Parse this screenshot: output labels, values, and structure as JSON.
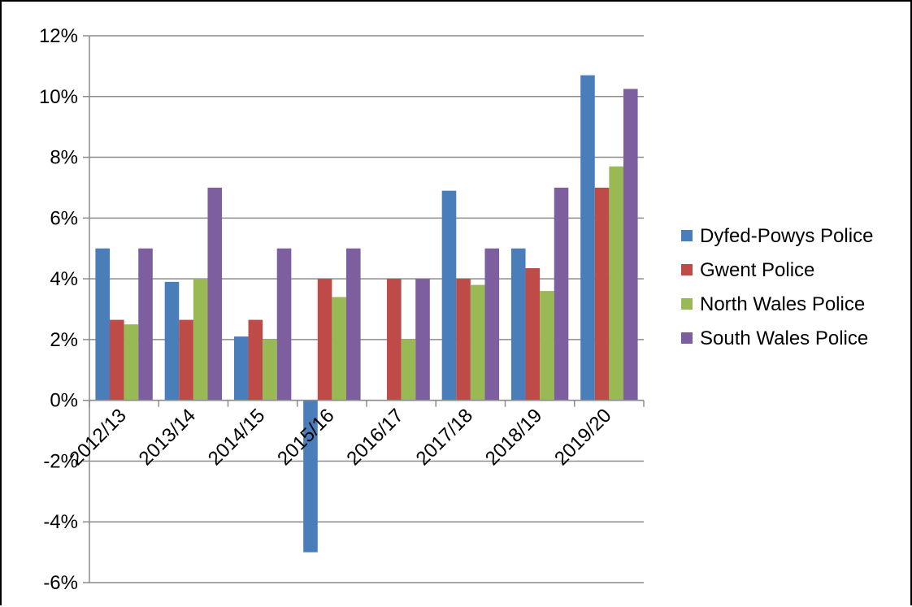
{
  "chart_data": {
    "type": "bar",
    "title": "",
    "xlabel": "",
    "ylabel": "",
    "categories": [
      "2012/13",
      "2013/14",
      "2014/15",
      "2015/16",
      "2016/17",
      "2017/18",
      "2018/19",
      "2019/20"
    ],
    "ylim": [
      -6,
      12
    ],
    "y_ticks": [
      12,
      10,
      8,
      6,
      4,
      2,
      0,
      -2,
      -4,
      -6
    ],
    "y_tick_labels": [
      "12%",
      "10%",
      "8%",
      "6%",
      "4%",
      "2%",
      "0%",
      "-2%",
      "-4%",
      "-6%"
    ],
    "grid": "horizontal",
    "legend_position": "right",
    "series": [
      {
        "name": "Dyfed-Powys Police",
        "color": "#4a7ebb",
        "values": [
          5.0,
          3.9,
          2.1,
          -5.0,
          0,
          6.9,
          5.0,
          10.7
        ]
      },
      {
        "name": "Gwent Police",
        "color": "#be4b48",
        "values": [
          2.65,
          2.65,
          2.65,
          4.0,
          4.0,
          4.0,
          4.35,
          7.0
        ]
      },
      {
        "name": "North Wales Police",
        "color": "#98b954",
        "values": [
          2.5,
          4.0,
          2.0,
          3.4,
          2.0,
          3.8,
          3.6,
          7.7
        ]
      },
      {
        "name": "South Wales Police",
        "color": "#7d5fa0",
        "values": [
          5.0,
          7.0,
          5.0,
          5.0,
          4.0,
          5.0,
          7.0,
          10.25
        ]
      }
    ]
  }
}
